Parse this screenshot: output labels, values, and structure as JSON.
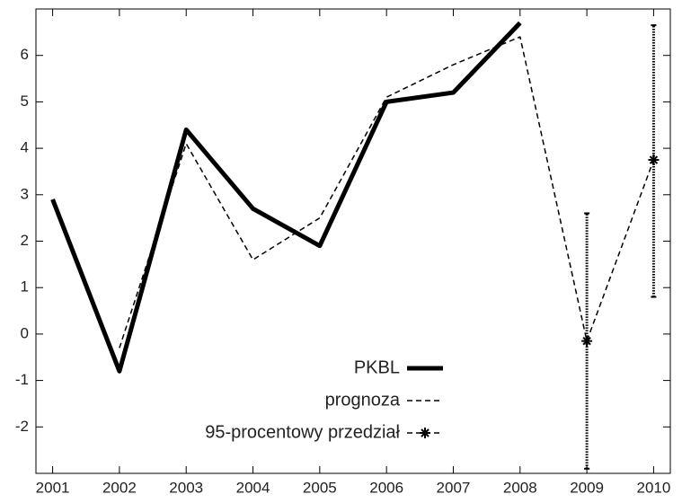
{
  "chart_data": {
    "type": "line",
    "x": [
      2001,
      2002,
      2003,
      2004,
      2005,
      2006,
      2007,
      2008,
      2009,
      2010
    ],
    "series": [
      {
        "name": "PKBL",
        "color": "#000000",
        "style": "solid",
        "values": [
          2.9,
          -0.8,
          4.4,
          2.7,
          1.9,
          5.0,
          5.2,
          6.7,
          null,
          null
        ]
      },
      {
        "name": "prognoza",
        "color": "#000000",
        "style": "dashed",
        "values": [
          null,
          -0.3,
          4.1,
          1.6,
          2.5,
          5.1,
          5.8,
          6.4,
          -0.15,
          3.75
        ]
      },
      {
        "name": "95-procentowy przedział",
        "color": "#000000",
        "style": "interval",
        "values": [
          null,
          null,
          null,
          null,
          null,
          null,
          null,
          null,
          -0.15,
          3.75
        ],
        "lower": [
          null,
          null,
          null,
          null,
          null,
          null,
          null,
          null,
          -2.9,
          0.8
        ],
        "upper": [
          null,
          null,
          null,
          null,
          null,
          null,
          null,
          null,
          2.6,
          6.65
        ]
      }
    ],
    "xlim": [
      2000.75,
      2010.25
    ],
    "ylim": [
      -3,
      7
    ],
    "xticks": [
      2001,
      2002,
      2003,
      2004,
      2005,
      2006,
      2007,
      2008,
      2009,
      2010
    ],
    "yticks": [
      -2,
      -1,
      0,
      1,
      2,
      3,
      4,
      5,
      6
    ],
    "legend": "bottom-center"
  }
}
